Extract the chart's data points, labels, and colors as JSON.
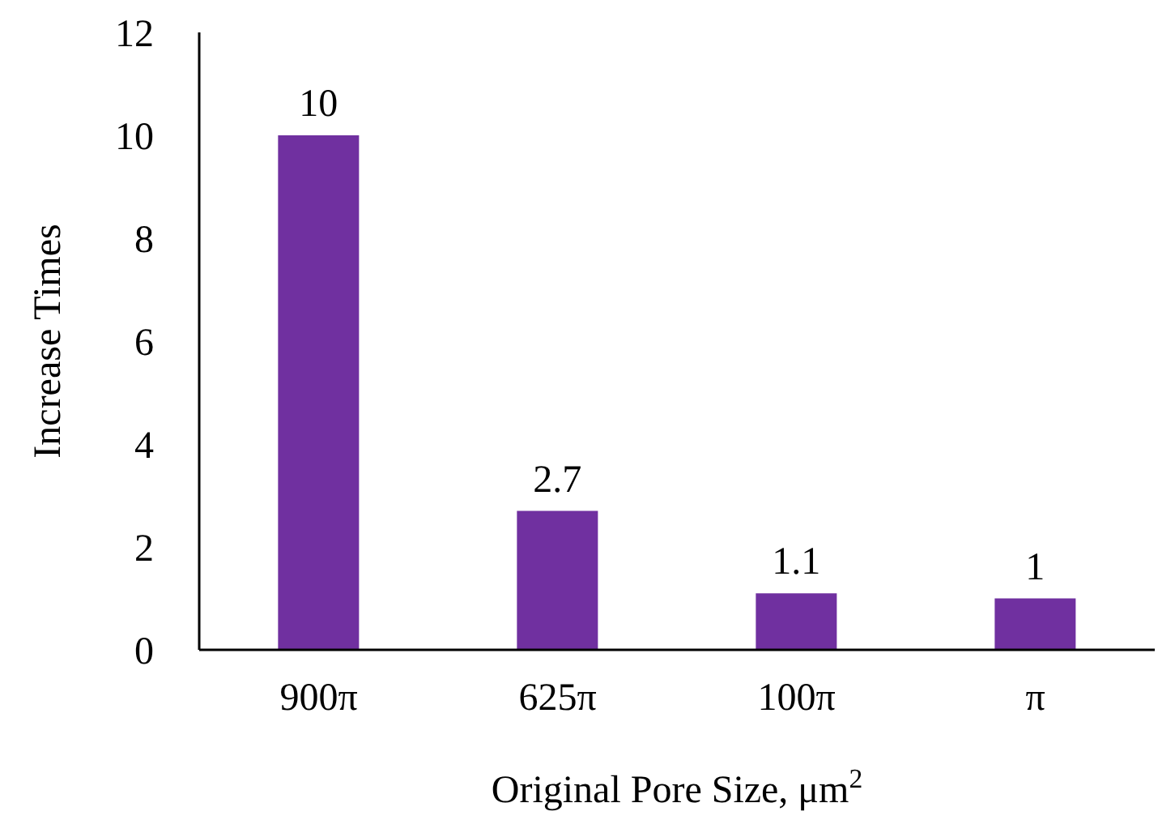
{
  "chart_data": {
    "type": "bar",
    "xlabel": "Original Pore Size, μm$^{2}$",
    "ylabel": "Increase Times",
    "categories": [
      "900π",
      "625π",
      "100π",
      "π"
    ],
    "values": [
      10,
      2.7,
      1.1,
      1
    ],
    "color": "#7030a0",
    "ylim": [
      0,
      12
    ],
    "yticks": [
      0,
      2,
      4,
      6,
      8,
      10,
      12
    ],
    "grid": false,
    "data_labels": true
  }
}
